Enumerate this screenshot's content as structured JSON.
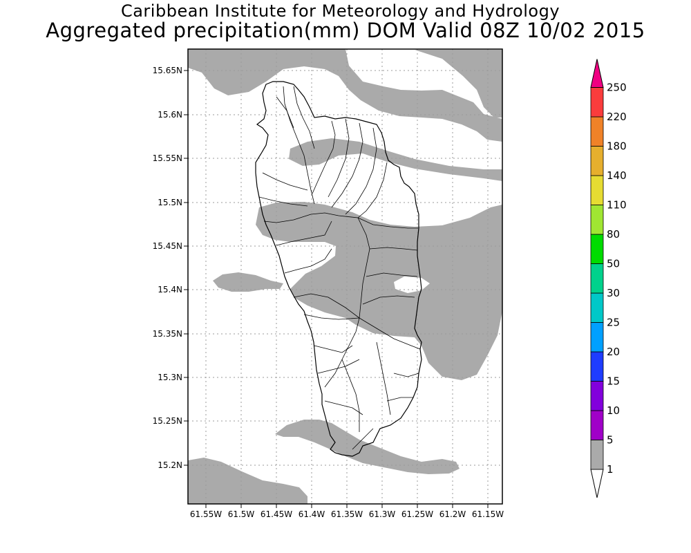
{
  "title": "Caribbean Institute for Meteorology and Hydrology",
  "subtitle": "Aggregated precipitation(mm) DOM Valid 08Z 10/02 2015",
  "map": {
    "lat_labels": [
      "15.65N",
      "15.6N",
      "15.55N",
      "15.5N",
      "15.45N",
      "15.4N",
      "15.35N",
      "15.3N",
      "15.25N",
      "15.2N"
    ],
    "lon_labels": [
      "61.55W",
      "61.5W",
      "61.45W",
      "61.4W",
      "61.35W",
      "61.3W",
      "61.25W",
      "61.2W",
      "61.15W"
    ],
    "precip_fill_color": "#aaaaaa",
    "grid": true
  },
  "legend": {
    "colors": [
      "#aaaaaa",
      "#a000c8",
      "#8200dc",
      "#1e3cff",
      "#00a0ff",
      "#00c8c8",
      "#00d28c",
      "#00dc00",
      "#a0e632",
      "#e6dc32",
      "#e6af2d",
      "#f08228",
      "#fa3c3c",
      "#f00082"
    ],
    "labels": [
      "1",
      "5",
      "10",
      "15",
      "20",
      "25",
      "30",
      "50",
      "80",
      "110",
      "140",
      "180",
      "220",
      "250"
    ]
  }
}
